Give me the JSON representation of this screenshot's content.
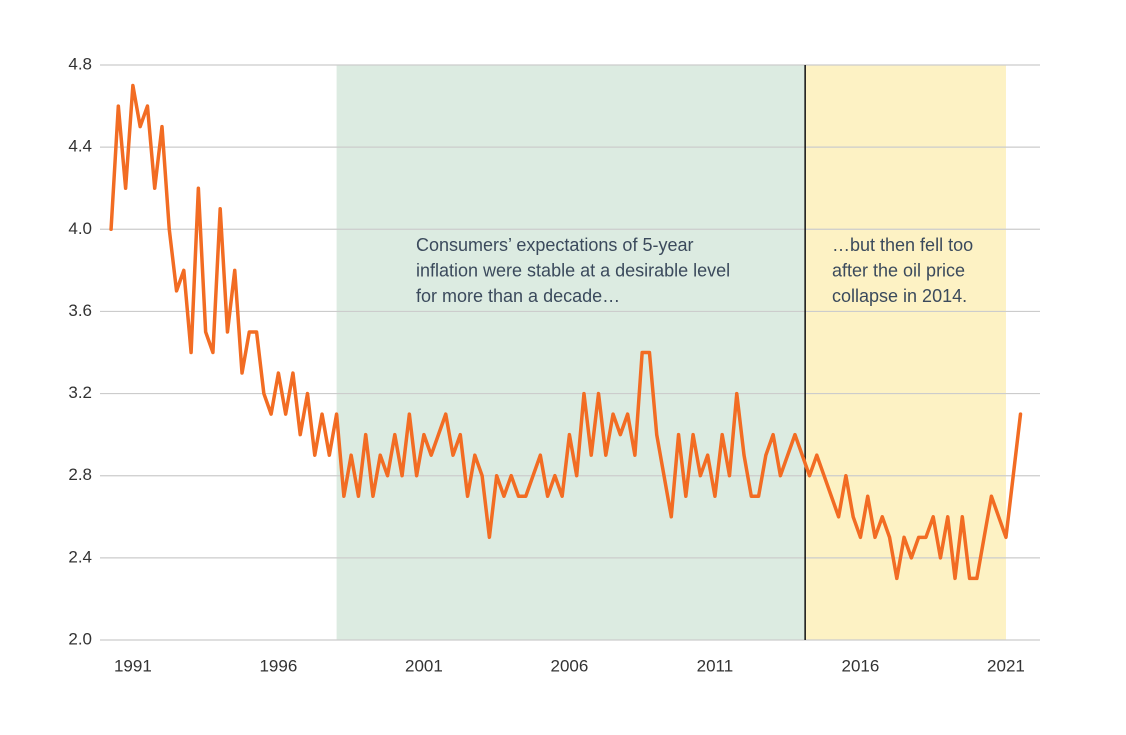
{
  "chart_data": {
    "type": "line",
    "x": [
      1990.25,
      1990.5,
      1990.75,
      1991,
      1991.25,
      1991.5,
      1991.75,
      1992,
      1992.25,
      1992.5,
      1992.75,
      1993,
      1993.25,
      1993.5,
      1993.75,
      1994,
      1994.25,
      1994.5,
      1994.75,
      1995,
      1995.25,
      1995.5,
      1995.75,
      1996,
      1996.25,
      1996.5,
      1996.75,
      1997,
      1997.25,
      1997.5,
      1997.75,
      1998,
      1998.25,
      1998.5,
      1998.75,
      1999,
      1999.25,
      1999.5,
      1999.75,
      2000,
      2000.25,
      2000.5,
      2000.75,
      2001,
      2001.25,
      2001.5,
      2001.75,
      2002,
      2002.25,
      2002.5,
      2002.75,
      2003,
      2003.25,
      2003.5,
      2003.75,
      2004,
      2004.25,
      2004.5,
      2004.75,
      2005,
      2005.25,
      2005.5,
      2005.75,
      2006,
      2006.25,
      2006.5,
      2006.75,
      2007,
      2007.25,
      2007.5,
      2007.75,
      2008,
      2008.25,
      2008.5,
      2008.75,
      2009,
      2009.25,
      2009.5,
      2009.75,
      2010,
      2010.25,
      2010.5,
      2010.75,
      2011,
      2011.25,
      2011.5,
      2011.75,
      2012,
      2012.25,
      2012.5,
      2012.75,
      2013,
      2013.25,
      2013.5,
      2013.75,
      2014,
      2014.25,
      2014.5,
      2014.75,
      2015,
      2015.25,
      2015.5,
      2015.75,
      2016,
      2016.25,
      2016.5,
      2016.75,
      2017,
      2017.25,
      2017.5,
      2017.75,
      2018,
      2018.25,
      2018.5,
      2018.75,
      2019,
      2019.25,
      2019.5,
      2019.75,
      2020,
      2020.25,
      2020.5,
      2020.75,
      2021,
      2021.25,
      2021.5
    ],
    "series": [
      {
        "color": "#f26c23",
        "values": [
          4.0,
          4.6,
          4.2,
          4.7,
          4.5,
          4.6,
          4.2,
          4.5,
          4.0,
          3.7,
          3.8,
          3.4,
          4.2,
          3.5,
          3.4,
          4.1,
          3.5,
          3.8,
          3.3,
          3.5,
          3.5,
          3.2,
          3.1,
          3.3,
          3.1,
          3.3,
          3.0,
          3.2,
          2.9,
          3.1,
          2.9,
          3.1,
          2.7,
          2.9,
          2.7,
          3.0,
          2.7,
          2.9,
          2.8,
          3.0,
          2.8,
          3.1,
          2.8,
          3.0,
          2.9,
          3.0,
          3.1,
          2.9,
          3.0,
          2.7,
          2.9,
          2.8,
          2.5,
          2.8,
          2.7,
          2.8,
          2.7,
          2.7,
          2.8,
          2.9,
          2.7,
          2.8,
          2.7,
          3.0,
          2.8,
          3.2,
          2.9,
          3.2,
          2.9,
          3.1,
          3.0,
          3.1,
          2.9,
          3.4,
          3.4,
          3.0,
          2.8,
          2.6,
          3.0,
          2.7,
          3.0,
          2.8,
          2.9,
          2.7,
          3.0,
          2.8,
          3.2,
          2.9,
          2.7,
          2.7,
          2.9,
          3.0,
          2.8,
          2.9,
          3.0,
          2.9,
          2.8,
          2.9,
          2.8,
          2.7,
          2.6,
          2.8,
          2.6,
          2.5,
          2.7,
          2.5,
          2.6,
          2.5,
          2.3,
          2.5,
          2.4,
          2.5,
          2.5,
          2.6,
          2.4,
          2.6,
          2.3,
          2.6,
          2.3,
          2.3,
          2.5,
          2.7,
          2.6,
          2.5,
          2.8,
          3.1
        ]
      }
    ],
    "xlim": [
      1989.87,
      2022.17
    ],
    "xticks": [
      1991,
      1996,
      2001,
      2006,
      2011,
      2016,
      2021
    ],
    "ylim": [
      2.0,
      4.8
    ],
    "yticks": [
      {
        "value": 2.0,
        "label": "2.0"
      },
      2.4,
      2.8,
      3.2,
      3.6,
      {
        "value": 4.0,
        "label": "4.0"
      },
      4.4,
      4.8
    ],
    "grid": true,
    "regions": [
      {
        "start": 1998,
        "end": 2014.1,
        "color": "#dcebe1"
      },
      {
        "start": 2014.1,
        "end": 2021,
        "color": "#fdf2c4"
      }
    ],
    "annotations": [
      [
        "Consumers’ expectations of 5-year",
        "inflation were stable at a desirable level",
        "for more than a decade…"
      ],
      [
        "…but then fell too",
        "after the oil price",
        "collapse in 2014."
      ]
    ]
  }
}
